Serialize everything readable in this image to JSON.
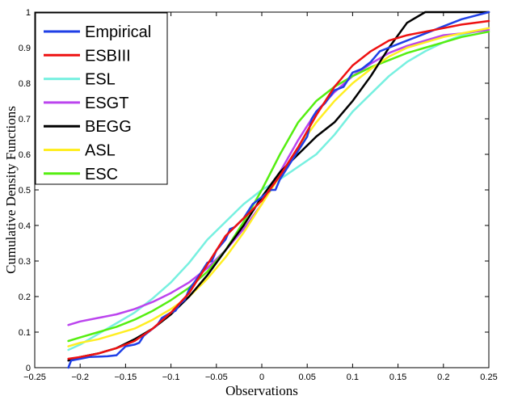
{
  "chart_data": {
    "type": "line",
    "title": "",
    "xlabel": "Observations",
    "ylabel": "Cumulative Density Functions",
    "xlim": [
      -0.25,
      0.25
    ],
    "ylim": [
      0,
      1
    ],
    "x_ticks": [
      -0.25,
      -0.2,
      -0.15,
      -0.1,
      -0.05,
      0,
      0.05,
      0.1,
      0.15,
      0.2,
      0.25
    ],
    "x_tick_labels": [
      "−0.25",
      "−0.2",
      "−0.15",
      "−0.1",
      "−0.05",
      "0",
      "0.05",
      "0.1",
      "0.15",
      "0.2",
      "0.25"
    ],
    "y_ticks": [
      0,
      0.1,
      0.2,
      0.3,
      0.4,
      0.5,
      0.6,
      0.7,
      0.8,
      0.9,
      1
    ],
    "y_tick_labels": [
      "0",
      "0.1",
      "0.2",
      "0.3",
      "0.4",
      "0.5",
      "0.6",
      "0.7",
      "0.8",
      "0.9",
      "1"
    ],
    "grid": false,
    "legend_position": "top-left",
    "series": [
      {
        "name": "Empirical",
        "color": "#1f3fe6",
        "x": [
          -0.213,
          -0.21,
          -0.2,
          -0.19,
          -0.17,
          -0.16,
          -0.15,
          -0.14,
          -0.135,
          -0.13,
          -0.12,
          -0.115,
          -0.11,
          -0.1,
          -0.095,
          -0.09,
          -0.085,
          -0.08,
          -0.07,
          -0.06,
          -0.055,
          -0.05,
          -0.04,
          -0.035,
          -0.03,
          -0.02,
          -0.015,
          -0.01,
          -0.005,
          0,
          0.005,
          0.01,
          0.015,
          0.02,
          0.03,
          0.04,
          0.045,
          0.05,
          0.055,
          0.06,
          0.07,
          0.08,
          0.09,
          0.1,
          0.11,
          0.12,
          0.13,
          0.14,
          0.15,
          0.16,
          0.17,
          0.18,
          0.19,
          0.2,
          0.22,
          0.25
        ],
        "y": [
          0,
          0.02,
          0.025,
          0.03,
          0.032,
          0.035,
          0.06,
          0.065,
          0.07,
          0.09,
          0.11,
          0.12,
          0.14,
          0.155,
          0.16,
          0.18,
          0.19,
          0.22,
          0.255,
          0.295,
          0.3,
          0.33,
          0.36,
          0.39,
          0.395,
          0.42,
          0.44,
          0.46,
          0.47,
          0.48,
          0.49,
          0.5,
          0.5,
          0.53,
          0.57,
          0.61,
          0.63,
          0.65,
          0.7,
          0.72,
          0.745,
          0.78,
          0.79,
          0.83,
          0.84,
          0.86,
          0.89,
          0.9,
          0.91,
          0.92,
          0.93,
          0.94,
          0.95,
          0.96,
          0.98,
          1
        ]
      },
      {
        "name": "ESBIII",
        "color": "#ee1111",
        "x": [
          -0.213,
          -0.2,
          -0.18,
          -0.16,
          -0.14,
          -0.12,
          -0.1,
          -0.08,
          -0.06,
          -0.04,
          -0.02,
          0,
          0.02,
          0.04,
          0.06,
          0.08,
          0.1,
          0.12,
          0.14,
          0.16,
          0.18,
          0.2,
          0.22,
          0.25
        ],
        "y": [
          0.025,
          0.03,
          0.04,
          0.055,
          0.075,
          0.11,
          0.155,
          0.21,
          0.29,
          0.37,
          0.42,
          0.47,
          0.54,
          0.62,
          0.71,
          0.79,
          0.85,
          0.89,
          0.92,
          0.935,
          0.945,
          0.955,
          0.965,
          0.975
        ]
      },
      {
        "name": "ESL",
        "color": "#77f0e0",
        "x": [
          -0.213,
          -0.2,
          -0.18,
          -0.16,
          -0.14,
          -0.12,
          -0.1,
          -0.08,
          -0.06,
          -0.04,
          -0.02,
          0,
          0.02,
          0.04,
          0.06,
          0.08,
          0.1,
          0.12,
          0.14,
          0.16,
          0.18,
          0.2,
          0.22,
          0.25
        ],
        "y": [
          0.05,
          0.065,
          0.095,
          0.125,
          0.155,
          0.195,
          0.24,
          0.295,
          0.36,
          0.41,
          0.46,
          0.5,
          0.53,
          0.565,
          0.6,
          0.655,
          0.72,
          0.77,
          0.82,
          0.86,
          0.89,
          0.915,
          0.935,
          0.955
        ]
      },
      {
        "name": "ESGT",
        "color": "#bb44ee",
        "x": [
          -0.213,
          -0.2,
          -0.18,
          -0.16,
          -0.14,
          -0.12,
          -0.1,
          -0.08,
          -0.06,
          -0.04,
          -0.02,
          0,
          0.02,
          0.04,
          0.06,
          0.08,
          0.1,
          0.12,
          0.14,
          0.16,
          0.18,
          0.2,
          0.22,
          0.25
        ],
        "y": [
          0.12,
          0.13,
          0.14,
          0.15,
          0.165,
          0.185,
          0.21,
          0.24,
          0.28,
          0.33,
          0.39,
          0.46,
          0.55,
          0.64,
          0.72,
          0.775,
          0.82,
          0.855,
          0.885,
          0.905,
          0.92,
          0.935,
          0.94,
          0.95
        ]
      },
      {
        "name": "BEGG",
        "color": "#000000",
        "x": [
          -0.213,
          -0.2,
          -0.18,
          -0.16,
          -0.14,
          -0.12,
          -0.1,
          -0.08,
          -0.06,
          -0.04,
          -0.02,
          0,
          0.02,
          0.04,
          0.06,
          0.08,
          0.1,
          0.12,
          0.14,
          0.16,
          0.18,
          0.2,
          0.22,
          0.25
        ],
        "y": [
          0.02,
          0.03,
          0.04,
          0.055,
          0.08,
          0.11,
          0.15,
          0.2,
          0.26,
          0.33,
          0.4,
          0.48,
          0.55,
          0.6,
          0.65,
          0.69,
          0.75,
          0.82,
          0.9,
          0.97,
          1,
          1,
          1,
          1
        ]
      },
      {
        "name": "ASL",
        "color": "#ffee22",
        "x": [
          -0.213,
          -0.2,
          -0.18,
          -0.16,
          -0.14,
          -0.12,
          -0.1,
          -0.08,
          -0.06,
          -0.04,
          -0.02,
          0,
          0.02,
          0.04,
          0.06,
          0.08,
          0.1,
          0.12,
          0.14,
          0.16,
          0.18,
          0.2,
          0.22,
          0.25
        ],
        "y": [
          0.06,
          0.07,
          0.08,
          0.095,
          0.11,
          0.135,
          0.165,
          0.2,
          0.25,
          0.31,
          0.38,
          0.46,
          0.54,
          0.62,
          0.69,
          0.75,
          0.8,
          0.84,
          0.875,
          0.9,
          0.915,
          0.93,
          0.94,
          0.955
        ]
      },
      {
        "name": "ESC",
        "color": "#55ee11",
        "x": [
          -0.213,
          -0.2,
          -0.18,
          -0.16,
          -0.14,
          -0.12,
          -0.1,
          -0.08,
          -0.06,
          -0.04,
          -0.02,
          0,
          0.02,
          0.04,
          0.06,
          0.08,
          0.1,
          0.12,
          0.14,
          0.16,
          0.18,
          0.2,
          0.22,
          0.25
        ],
        "y": [
          0.075,
          0.085,
          0.1,
          0.115,
          0.135,
          0.16,
          0.19,
          0.225,
          0.27,
          0.33,
          0.41,
          0.5,
          0.6,
          0.69,
          0.75,
          0.79,
          0.82,
          0.845,
          0.865,
          0.885,
          0.9,
          0.915,
          0.93,
          0.945
        ]
      }
    ]
  }
}
